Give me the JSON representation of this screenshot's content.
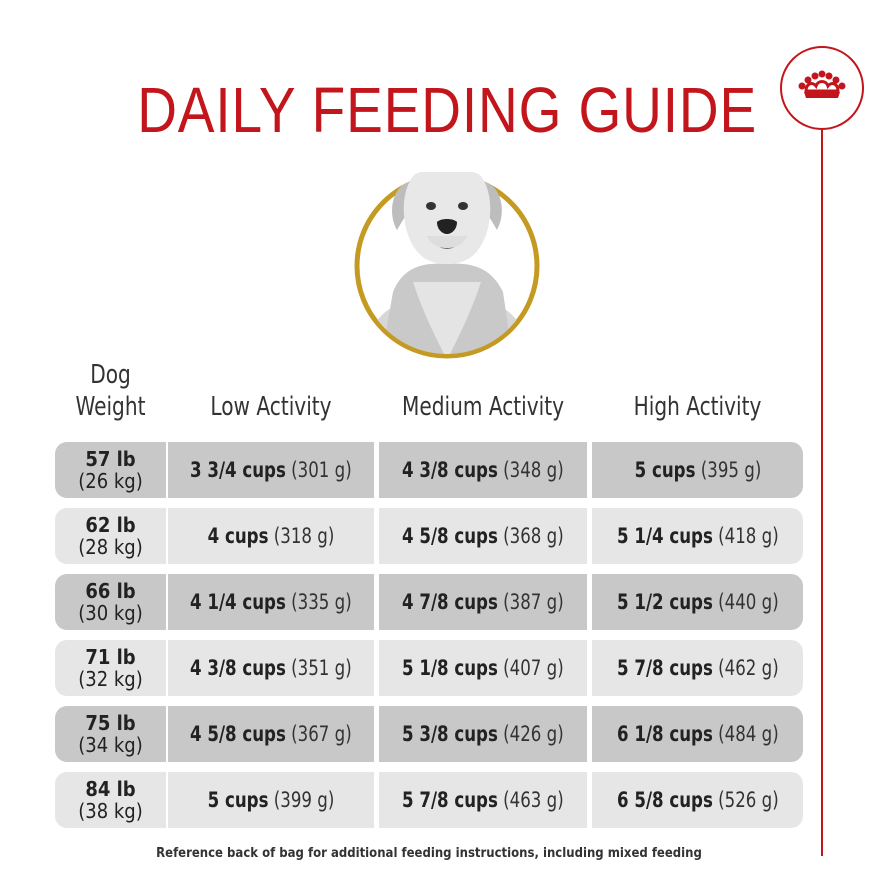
{
  "title": "DAILY FEEDING GUIDE",
  "headers": {
    "weight_line1": "Dog",
    "weight_line2": "Weight",
    "low": "Low Activity",
    "medium": "Medium Activity",
    "high": "High Activity"
  },
  "rows": [
    {
      "lb": "57 lb",
      "kg": "(26 kg)",
      "low_cups": "3 3/4 cups",
      "low_g": "(301 g)",
      "med_cups": "4 3/8 cups",
      "med_g": "(348 g)",
      "high_cups": "5 cups",
      "high_g": "(395 g)"
    },
    {
      "lb": "62 lb",
      "kg": "(28 kg)",
      "low_cups": "4 cups",
      "low_g": "(318 g)",
      "med_cups": "4 5/8 cups",
      "med_g": "(368 g)",
      "high_cups": "5 1/4 cups",
      "high_g": "(418 g)"
    },
    {
      "lb": "66 lb",
      "kg": "(30 kg)",
      "low_cups": "4 1/4 cups",
      "low_g": "(335 g)",
      "med_cups": "4 7/8 cups",
      "med_g": "(387 g)",
      "high_cups": "5 1/2 cups",
      "high_g": "(440 g)"
    },
    {
      "lb": "71 lb",
      "kg": "(32 kg)",
      "low_cups": "4 3/8 cups",
      "low_g": "(351 g)",
      "med_cups": "5 1/8 cups",
      "med_g": "(407 g)",
      "high_cups": "5 7/8 cups",
      "high_g": "(462 g)"
    },
    {
      "lb": "75 lb",
      "kg": "(34 kg)",
      "low_cups": "4 5/8 cups",
      "low_g": "(367 g)",
      "med_cups": "5 3/8 cups",
      "med_g": "(426 g)",
      "high_cups": "6 1/8 cups",
      "high_g": "(484 g)"
    },
    {
      "lb": "84 lb",
      "kg": "(38 kg)",
      "low_cups": "5 cups",
      "low_g": "(399 g)",
      "med_cups": "5 7/8 cups",
      "med_g": "(463 g)",
      "high_cups": "6 5/8 cups",
      "high_g": "(526 g)"
    }
  ],
  "footer": "Reference back of bag for additional feeding instructions, including mixed feeding",
  "colors": {
    "brand_red": "#c3161c",
    "ring_gold": "#c49a22",
    "row_dark": "#c8c8c8",
    "row_light": "#e6e6e6"
  },
  "icons": {
    "brand": "crown-logo-icon",
    "portrait": "dog-portrait-icon"
  }
}
